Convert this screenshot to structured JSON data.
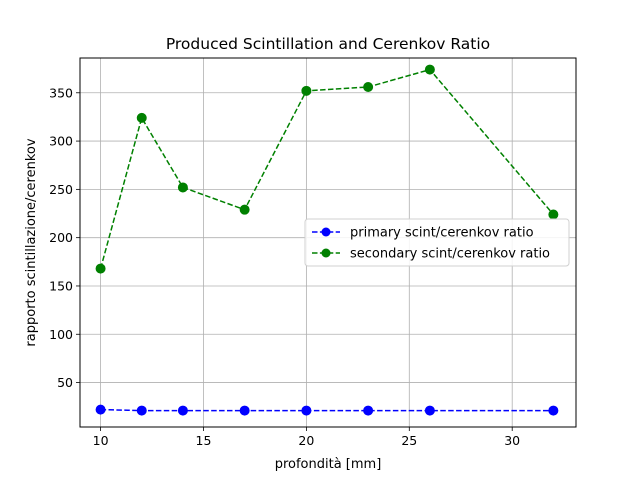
{
  "chart_data": {
    "type": "line",
    "title": "Produced Scintillation and Cerenkov Ratio",
    "xlabel": "profondità [mm]",
    "ylabel": "rapporto scintillazione/cerenkov",
    "xlim": [
      9.0,
      33.1
    ],
    "ylim": [
      4.0,
      386.0
    ],
    "xticks": [
      10,
      15,
      20,
      25,
      30
    ],
    "yticks": [
      50,
      100,
      150,
      200,
      250,
      300,
      350
    ],
    "grid": true,
    "legend_position": "center-right",
    "series": [
      {
        "name": "primary scint/cerenkov ratio",
        "color": "#0000ff",
        "linestyle": "dashed",
        "marker": "circle",
        "x": [
          10,
          12,
          14,
          17,
          20,
          23,
          26,
          32
        ],
        "y": [
          22,
          21,
          21,
          21,
          21,
          21,
          21,
          21
        ]
      },
      {
        "name": "secondary scint/cerenkov ratio",
        "color": "#008000",
        "linestyle": "dashed",
        "marker": "circle",
        "x": [
          10,
          12,
          14,
          17,
          20,
          23,
          26,
          32
        ],
        "y": [
          168,
          324,
          252,
          229,
          352,
          356,
          374,
          224
        ]
      }
    ]
  }
}
